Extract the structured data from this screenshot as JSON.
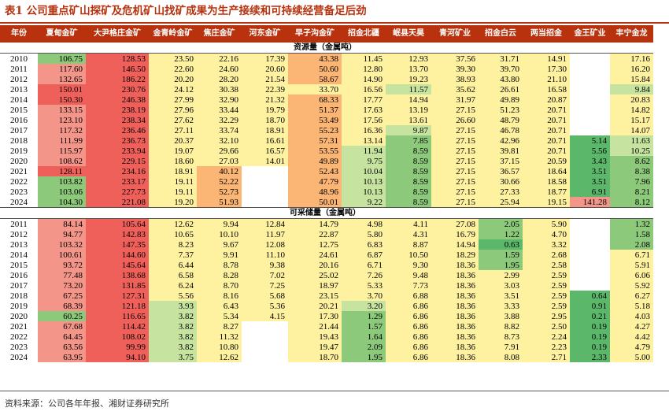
{
  "title": "表1 公司重点矿山探矿及危机矿山找矿成果为生产接续和可持续经营备足后劲",
  "source": "资料来源：公司各年年报、湘财证券研究所",
  "header": [
    "年份",
    "夏甸金矿",
    "大尹格庄金矿",
    "金青岭金矿",
    "焦庄金矿",
    "河东金矿",
    "早子沟金矿",
    "招金北疆",
    "岷县天昊",
    "青河矿业",
    "招金白云",
    "两当招金",
    "金王矿业",
    "丰宁金龙"
  ],
  "colors": {
    "red": "#f0605a",
    "lightred": "#f4958a",
    "orange": "#fbb574",
    "yellow": "#fef1a0",
    "lightgreen": "#c6e3a0",
    "green": "#8dc97a",
    "darkgreen": "#5bb86a",
    "white": "#ffffff"
  },
  "reserve": {
    "label": "资源量（金属吨）",
    "rows": [
      {
        "y": "2010",
        "v": [
          "106.75",
          "128.53",
          "23.50",
          "22.16",
          "17.39",
          "43.38",
          "11.45",
          "12.93",
          "37.56",
          "31.71",
          "14.91",
          "",
          "17.16"
        ],
        "c": [
          "green",
          "red",
          "yellow",
          "yellow",
          "yellow",
          "orange",
          "yellow",
          "yellow",
          "yellow",
          "yellow",
          "yellow",
          "white",
          "yellow"
        ]
      },
      {
        "y": "2011",
        "v": [
          "117.60",
          "146.50",
          "22.60",
          "24.60",
          "20.60",
          "50.60",
          "12.80",
          "13.70",
          "39.30",
          "39.70",
          "17.30",
          "",
          "16.20"
        ],
        "c": [
          "lightred",
          "red",
          "yellow",
          "yellow",
          "yellow",
          "orange",
          "yellow",
          "yellow",
          "yellow",
          "yellow",
          "yellow",
          "white",
          "yellow"
        ]
      },
      {
        "y": "2012",
        "v": [
          "132.65",
          "186.22",
          "20.20",
          "28.20",
          "21.54",
          "58.67",
          "14.90",
          "19.23",
          "38.93",
          "43.80",
          "21.10",
          "",
          "15.84"
        ],
        "c": [
          "lightred",
          "red",
          "yellow",
          "yellow",
          "yellow",
          "orange",
          "yellow",
          "yellow",
          "yellow",
          "yellow",
          "yellow",
          "white",
          "yellow"
        ]
      },
      {
        "y": "2013",
        "v": [
          "150.01",
          "230.76",
          "24.12",
          "30.38",
          "22.39",
          "33.70",
          "16.56",
          "11.57",
          "35.62",
          "26.61",
          "16.58",
          "",
          "9.84"
        ],
        "c": [
          "red",
          "red",
          "yellow",
          "yellow",
          "yellow",
          "yellow",
          "yellow",
          "lightgreen",
          "yellow",
          "yellow",
          "yellow",
          "white",
          "lightgreen"
        ]
      },
      {
        "y": "2014",
        "v": [
          "150.30",
          "246.38",
          "27.99",
          "32.90",
          "21.32",
          "68.33",
          "17.77",
          "14.94",
          "31.97",
          "49.89",
          "20.87",
          "",
          "20.83"
        ],
        "c": [
          "red",
          "red",
          "yellow",
          "yellow",
          "yellow",
          "orange",
          "yellow",
          "yellow",
          "yellow",
          "yellow",
          "yellow",
          "white",
          "yellow"
        ]
      },
      {
        "y": "2015",
        "v": [
          "133.15",
          "238.19",
          "27.96",
          "33.44",
          "19.79",
          "51.37",
          "17.63",
          "13.19",
          "27.15",
          "51.23",
          "20.71",
          "",
          "14.82"
        ],
        "c": [
          "lightred",
          "red",
          "yellow",
          "yellow",
          "yellow",
          "orange",
          "yellow",
          "yellow",
          "yellow",
          "yellow",
          "yellow",
          "white",
          "yellow"
        ]
      },
      {
        "y": "2016",
        "v": [
          "123.10",
          "238.34",
          "27.62",
          "32.29",
          "18.70",
          "53.49",
          "17.56",
          "13.61",
          "26.60",
          "48.79",
          "20.71",
          "",
          "15.17"
        ],
        "c": [
          "lightred",
          "red",
          "yellow",
          "yellow",
          "yellow",
          "orange",
          "yellow",
          "yellow",
          "yellow",
          "yellow",
          "yellow",
          "white",
          "yellow"
        ]
      },
      {
        "y": "2017",
        "v": [
          "117.32",
          "236.46",
          "27.11",
          "33.74",
          "18.91",
          "55.23",
          "16.36",
          "9.87",
          "27.15",
          "46.78",
          "20.71",
          "",
          "14.07"
        ],
        "c": [
          "lightred",
          "red",
          "yellow",
          "yellow",
          "yellow",
          "orange",
          "yellow",
          "lightgreen",
          "yellow",
          "yellow",
          "yellow",
          "white",
          "yellow"
        ]
      },
      {
        "y": "2018",
        "v": [
          "111.99",
          "236.73",
          "20.37",
          "32.10",
          "16.61",
          "57.31",
          "13.14",
          "7.85",
          "27.15",
          "42.96",
          "20.71",
          "5.14",
          "11.63"
        ],
        "c": [
          "lightred",
          "red",
          "yellow",
          "yellow",
          "yellow",
          "orange",
          "yellow",
          "green",
          "yellow",
          "yellow",
          "yellow",
          "darkgreen",
          "lightgreen"
        ]
      },
      {
        "y": "2019",
        "v": [
          "115.97",
          "233.94",
          "19.07",
          "29.66",
          "16.57",
          "53.55",
          "11.94",
          "8.59",
          "27.15",
          "39.81",
          "20.71",
          "5.56",
          "10.25"
        ],
        "c": [
          "lightred",
          "red",
          "yellow",
          "yellow",
          "yellow",
          "orange",
          "lightgreen",
          "green",
          "yellow",
          "yellow",
          "yellow",
          "darkgreen",
          "lightgreen"
        ]
      },
      {
        "y": "2020",
        "v": [
          "108.62",
          "229.15",
          "18.60",
          "27.03",
          "14.01",
          "49.89",
          "9.75",
          "8.59",
          "27.15",
          "37.15",
          "20.59",
          "3.43",
          "8.62"
        ],
        "c": [
          "lightred",
          "red",
          "yellow",
          "yellow",
          "yellow",
          "orange",
          "lightgreen",
          "green",
          "yellow",
          "yellow",
          "yellow",
          "darkgreen",
          "green"
        ]
      },
      {
        "y": "2021",
        "v": [
          "128.11",
          "234.16",
          "18.91",
          "40.12",
          "",
          "52.43",
          "10.04",
          "8.59",
          "27.15",
          "36.57",
          "18.64",
          "3.51",
          "8.38"
        ],
        "c": [
          "red",
          "red",
          "yellow",
          "orange",
          "white",
          "orange",
          "lightgreen",
          "green",
          "yellow",
          "yellow",
          "yellow",
          "darkgreen",
          "green"
        ]
      },
      {
        "y": "2022",
        "v": [
          "103.82",
          "233.17",
          "19.11",
          "52.22",
          "",
          "47.79",
          "10.13",
          "8.59",
          "27.15",
          "30.66",
          "18.58",
          "3.51",
          "7.96"
        ],
        "c": [
          "green",
          "red",
          "yellow",
          "orange",
          "white",
          "orange",
          "lightgreen",
          "green",
          "yellow",
          "yellow",
          "yellow",
          "darkgreen",
          "green"
        ]
      },
      {
        "y": "2023",
        "v": [
          "103.06",
          "227.73",
          "19.11",
          "52.73",
          "",
          "48.96",
          "10.13",
          "8.59",
          "27.15",
          "27.33",
          "18.77",
          "6.91",
          "8.21"
        ],
        "c": [
          "green",
          "red",
          "yellow",
          "orange",
          "white",
          "orange",
          "lightgreen",
          "green",
          "yellow",
          "yellow",
          "yellow",
          "darkgreen",
          "green"
        ]
      },
      {
        "y": "2024",
        "v": [
          "104.30",
          "221.08",
          "19.20",
          "51.93",
          "",
          "50.01",
          "9.22",
          "8.59",
          "27.15",
          "25.94",
          "19.15",
          "141.28",
          "8.12"
        ],
        "c": [
          "green",
          "red",
          "yellow",
          "orange",
          "white",
          "orange",
          "lightgreen",
          "green",
          "yellow",
          "yellow",
          "yellow",
          "lightred",
          "green"
        ]
      }
    ]
  },
  "mining": {
    "label": "可采储量（金属吨）",
    "rows": [
      {
        "y": "2011",
        "v": [
          "84.14",
          "105.64",
          "12.62",
          "9.94",
          "12.84",
          "14.79",
          "4.98",
          "4.11",
          "27.08",
          "2.05",
          "5.90",
          "",
          "1.32"
        ],
        "c": [
          "lightred",
          "red",
          "yellow",
          "yellow",
          "yellow",
          "yellow",
          "yellow",
          "yellow",
          "yellow",
          "green",
          "yellow",
          "white",
          "green"
        ]
      },
      {
        "y": "2012",
        "v": [
          "94.77",
          "142.83",
          "10.65",
          "10.10",
          "11.97",
          "22.87",
          "5.80",
          "4.31",
          "16.79",
          "1.22",
          "4.70",
          "",
          "1.58"
        ],
        "c": [
          "lightred",
          "red",
          "yellow",
          "yellow",
          "yellow",
          "yellow",
          "yellow",
          "yellow",
          "yellow",
          "green",
          "yellow",
          "white",
          "green"
        ]
      },
      {
        "y": "2013",
        "v": [
          "103.32",
          "147.35",
          "8.23",
          "9.67",
          "12.08",
          "12.75",
          "6.83",
          "8.87",
          "14.94",
          "0.63",
          "3.32",
          "",
          "2.08"
        ],
        "c": [
          "lightred",
          "red",
          "yellow",
          "yellow",
          "yellow",
          "yellow",
          "yellow",
          "yellow",
          "yellow",
          "darkgreen",
          "yellow",
          "white",
          "green"
        ]
      },
      {
        "y": "2014",
        "v": [
          "100.61",
          "144.60",
          "7.37",
          "9.91",
          "11.10",
          "24.61",
          "6.87",
          "10.50",
          "18.29",
          "1.59",
          "2.68",
          "",
          "6.71"
        ],
        "c": [
          "lightred",
          "red",
          "yellow",
          "yellow",
          "yellow",
          "yellow",
          "yellow",
          "yellow",
          "yellow",
          "green",
          "yellow",
          "white",
          "yellow"
        ]
      },
      {
        "y": "2015",
        "v": [
          "93.72",
          "145.64",
          "6.44",
          "8.78",
          "9.38",
          "20.16",
          "6.71",
          "9.30",
          "18.36",
          "1.95",
          "2.58",
          "",
          "5.91"
        ],
        "c": [
          "lightred",
          "red",
          "yellow",
          "yellow",
          "yellow",
          "yellow",
          "yellow",
          "yellow",
          "yellow",
          "green",
          "yellow",
          "white",
          "yellow"
        ]
      },
      {
        "y": "2016",
        "v": [
          "77.48",
          "138.68",
          "6.58",
          "8.28",
          "7.02",
          "25.02",
          "7.26",
          "9.48",
          "18.36",
          "2.99",
          "2.59",
          "",
          "6.06"
        ],
        "c": [
          "lightred",
          "red",
          "yellow",
          "yellow",
          "yellow",
          "yellow",
          "yellow",
          "yellow",
          "yellow",
          "yellow",
          "yellow",
          "white",
          "yellow"
        ]
      },
      {
        "y": "2017",
        "v": [
          "73.20",
          "131.85",
          "6.24",
          "8.70",
          "7.25",
          "18.97",
          "5.33",
          "7.73",
          "18.36",
          "3.03",
          "2.59",
          "",
          "5.92"
        ],
        "c": [
          "lightred",
          "red",
          "yellow",
          "yellow",
          "yellow",
          "yellow",
          "yellow",
          "yellow",
          "yellow",
          "yellow",
          "yellow",
          "white",
          "yellow"
        ]
      },
      {
        "y": "2018",
        "v": [
          "67.25",
          "127.31",
          "5.56",
          "8.16",
          "5.68",
          "23.15",
          "3.70",
          "6.88",
          "18.36",
          "3.51",
          "2.59",
          "0.64",
          "6.27"
        ],
        "c": [
          "lightred",
          "red",
          "yellow",
          "yellow",
          "yellow",
          "yellow",
          "yellow",
          "yellow",
          "yellow",
          "yellow",
          "yellow",
          "darkgreen",
          "yellow"
        ]
      },
      {
        "y": "2019",
        "v": [
          "68.39",
          "121.18",
          "3.93",
          "6.43",
          "5.36",
          "20.21",
          "3.20",
          "6.86",
          "18.36",
          "3.33",
          "2.59",
          "0.91",
          "5.18"
        ],
        "c": [
          "lightred",
          "red",
          "lightgreen",
          "yellow",
          "yellow",
          "yellow",
          "lightgreen",
          "yellow",
          "yellow",
          "yellow",
          "yellow",
          "darkgreen",
          "yellow"
        ]
      },
      {
        "y": "2020",
        "v": [
          "60.25",
          "116.65",
          "3.82",
          "5.34",
          "4.15",
          "17.30",
          "1.29",
          "6.86",
          "18.36",
          "3.88",
          "2.95",
          "0.21",
          "4.03"
        ],
        "c": [
          "green",
          "red",
          "lightgreen",
          "yellow",
          "yellow",
          "yellow",
          "green",
          "yellow",
          "yellow",
          "yellow",
          "yellow",
          "darkgreen",
          "yellow"
        ]
      },
      {
        "y": "2021",
        "v": [
          "67.68",
          "114.42",
          "3.82",
          "8.27",
          "",
          "21.44",
          "1.57",
          "6.86",
          "18.36",
          "8.82",
          "2.50",
          "0.19",
          "4.27"
        ],
        "c": [
          "lightred",
          "red",
          "lightgreen",
          "yellow",
          "white",
          "yellow",
          "green",
          "yellow",
          "yellow",
          "yellow",
          "yellow",
          "darkgreen",
          "yellow"
        ]
      },
      {
        "y": "2022",
        "v": [
          "64.45",
          "108.02",
          "3.82",
          "11.32",
          "",
          "19.43",
          "1.64",
          "6.86",
          "18.36",
          "8.73",
          "2.24",
          "0.19",
          "4.42"
        ],
        "c": [
          "lightred",
          "red",
          "lightgreen",
          "yellow",
          "white",
          "yellow",
          "green",
          "yellow",
          "yellow",
          "yellow",
          "yellow",
          "darkgreen",
          "yellow"
        ]
      },
      {
        "y": "2023",
        "v": [
          "63.56",
          "99.99",
          "3.82",
          "10.80",
          "",
          "19.47",
          "2.09",
          "6.86",
          "18.36",
          "7.91",
          "2.23",
          "0.19",
          "4.79"
        ],
        "c": [
          "lightred",
          "red",
          "lightgreen",
          "yellow",
          "white",
          "yellow",
          "green",
          "yellow",
          "yellow",
          "yellow",
          "yellow",
          "darkgreen",
          "yellow"
        ]
      },
      {
        "y": "2024",
        "v": [
          "63.95",
          "94.10",
          "3.75",
          "12.62",
          "",
          "18.70",
          "1.95",
          "6.86",
          "18.36",
          "8.08",
          "2.71",
          "2.33",
          "5.00"
        ],
        "c": [
          "lightred",
          "red",
          "lightgreen",
          "yellow",
          "white",
          "yellow",
          "green",
          "yellow",
          "yellow",
          "yellow",
          "yellow",
          "darkgreen",
          "yellow"
        ]
      }
    ]
  }
}
